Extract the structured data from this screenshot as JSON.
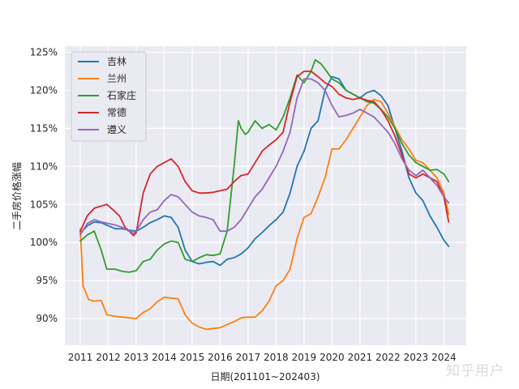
{
  "watermark": "知乎用户",
  "chart_data": {
    "type": "line",
    "title": "",
    "xlabel": "日期(201101~202403)",
    "ylabel": "二手房价格涨幅",
    "x_ticks": [
      "2011",
      "2012",
      "2013",
      "2014",
      "2015",
      "2016",
      "2017",
      "2018",
      "2019",
      "2020",
      "2021",
      "2022",
      "2023",
      "2024"
    ],
    "y_ticks": [
      "90%",
      "95%",
      "100%",
      "105%",
      "110%",
      "115%",
      "120%",
      "125%"
    ],
    "xlim": [
      2010.45,
      2024.8
    ],
    "ylim": [
      86.5,
      125.8
    ],
    "legend_position": "top-left",
    "grid": true,
    "series": [
      {
        "name": "吉林",
        "color": "#1f77b4",
        "points": [
          [
            2011.0,
            101.2
          ],
          [
            2011.25,
            102.2
          ],
          [
            2011.5,
            102.7
          ],
          [
            2011.75,
            102.6
          ],
          [
            2012.0,
            102.2
          ],
          [
            2012.25,
            101.8
          ],
          [
            2012.5,
            101.8
          ],
          [
            2012.75,
            101.6
          ],
          [
            2013.0,
            101.5
          ],
          [
            2013.25,
            102.0
          ],
          [
            2013.5,
            102.6
          ],
          [
            2013.75,
            103.0
          ],
          [
            2014.0,
            103.5
          ],
          [
            2014.25,
            103.3
          ],
          [
            2014.5,
            102.0
          ],
          [
            2014.75,
            99.0
          ],
          [
            2015.0,
            97.5
          ],
          [
            2015.25,
            97.2
          ],
          [
            2015.5,
            97.4
          ],
          [
            2015.75,
            97.5
          ],
          [
            2016.0,
            97.0
          ],
          [
            2016.25,
            97.8
          ],
          [
            2016.5,
            98.0
          ],
          [
            2016.75,
            98.5
          ],
          [
            2017.0,
            99.3
          ],
          [
            2017.25,
            100.5
          ],
          [
            2017.5,
            101.3
          ],
          [
            2017.75,
            102.2
          ],
          [
            2018.0,
            103.0
          ],
          [
            2018.25,
            104.0
          ],
          [
            2018.5,
            106.5
          ],
          [
            2018.75,
            110.0
          ],
          [
            2019.0,
            112.0
          ],
          [
            2019.25,
            115.0
          ],
          [
            2019.5,
            116.0
          ],
          [
            2019.75,
            120.0
          ],
          [
            2020.0,
            121.8
          ],
          [
            2020.25,
            121.5
          ],
          [
            2020.5,
            120.0
          ],
          [
            2020.75,
            119.5
          ],
          [
            2021.0,
            119.0
          ],
          [
            2021.25,
            119.7
          ],
          [
            2021.5,
            120.0
          ],
          [
            2021.75,
            119.3
          ],
          [
            2022.0,
            118.0
          ],
          [
            2022.25,
            115.0
          ],
          [
            2022.5,
            112.0
          ],
          [
            2022.75,
            108.5
          ],
          [
            2023.0,
            106.5
          ],
          [
            2023.25,
            105.5
          ],
          [
            2023.5,
            103.5
          ],
          [
            2023.75,
            102.0
          ],
          [
            2024.0,
            100.3
          ],
          [
            2024.17,
            99.5
          ]
        ]
      },
      {
        "name": "兰州",
        "color": "#ff7f0e",
        "points": [
          [
            2011.0,
            101.8
          ],
          [
            2011.1,
            94.3
          ],
          [
            2011.3,
            92.5
          ],
          [
            2011.5,
            92.3
          ],
          [
            2011.75,
            92.4
          ],
          [
            2011.95,
            90.5
          ],
          [
            2012.25,
            90.3
          ],
          [
            2012.5,
            90.2
          ],
          [
            2012.75,
            90.1
          ],
          [
            2013.0,
            90.0
          ],
          [
            2013.25,
            90.8
          ],
          [
            2013.5,
            91.3
          ],
          [
            2013.75,
            92.2
          ],
          [
            2014.0,
            92.8
          ],
          [
            2014.25,
            92.7
          ],
          [
            2014.5,
            92.6
          ],
          [
            2014.75,
            90.5
          ],
          [
            2015.0,
            89.4
          ],
          [
            2015.25,
            88.9
          ],
          [
            2015.5,
            88.6
          ],
          [
            2015.75,
            88.7
          ],
          [
            2016.0,
            88.8
          ],
          [
            2016.25,
            89.2
          ],
          [
            2016.5,
            89.6
          ],
          [
            2016.75,
            90.1
          ],
          [
            2017.0,
            90.2
          ],
          [
            2017.25,
            90.2
          ],
          [
            2017.5,
            91.0
          ],
          [
            2017.75,
            92.3
          ],
          [
            2018.0,
            94.3
          ],
          [
            2018.25,
            95.0
          ],
          [
            2018.5,
            96.5
          ],
          [
            2018.75,
            100.5
          ],
          [
            2019.0,
            103.3
          ],
          [
            2019.25,
            103.8
          ],
          [
            2019.5,
            106.0
          ],
          [
            2019.75,
            108.5
          ],
          [
            2020.0,
            112.3
          ],
          [
            2020.25,
            112.3
          ],
          [
            2020.5,
            113.5
          ],
          [
            2020.75,
            115.0
          ],
          [
            2021.0,
            116.5
          ],
          [
            2021.25,
            118.0
          ],
          [
            2021.5,
            118.8
          ],
          [
            2021.75,
            118.5
          ],
          [
            2022.0,
            117.0
          ],
          [
            2022.25,
            115.2
          ],
          [
            2022.5,
            113.5
          ],
          [
            2022.75,
            112.3
          ],
          [
            2023.0,
            110.8
          ],
          [
            2023.25,
            110.5
          ],
          [
            2023.5,
            109.5
          ],
          [
            2023.75,
            108.5
          ],
          [
            2024.0,
            106.5
          ],
          [
            2024.17,
            103.7
          ]
        ]
      },
      {
        "name": "石家庄",
        "color": "#2ca02c",
        "points": [
          [
            2011.0,
            100.2
          ],
          [
            2011.25,
            101.0
          ],
          [
            2011.5,
            101.5
          ],
          [
            2011.75,
            99.0
          ],
          [
            2011.95,
            96.5
          ],
          [
            2012.25,
            96.5
          ],
          [
            2012.5,
            96.2
          ],
          [
            2012.75,
            96.1
          ],
          [
            2013.0,
            96.3
          ],
          [
            2013.25,
            97.5
          ],
          [
            2013.5,
            97.8
          ],
          [
            2013.75,
            99.0
          ],
          [
            2014.0,
            99.8
          ],
          [
            2014.25,
            100.2
          ],
          [
            2014.5,
            100.0
          ],
          [
            2014.75,
            97.8
          ],
          [
            2015.0,
            97.5
          ],
          [
            2015.25,
            98.0
          ],
          [
            2015.5,
            98.4
          ],
          [
            2015.75,
            98.3
          ],
          [
            2016.0,
            98.5
          ],
          [
            2016.25,
            101.5
          ],
          [
            2016.5,
            110.0
          ],
          [
            2016.65,
            116.0
          ],
          [
            2016.75,
            115.0
          ],
          [
            2016.9,
            114.2
          ],
          [
            2017.0,
            114.5
          ],
          [
            2017.25,
            116.0
          ],
          [
            2017.5,
            115.0
          ],
          [
            2017.75,
            115.5
          ],
          [
            2018.0,
            114.8
          ],
          [
            2018.25,
            116.5
          ],
          [
            2018.5,
            119.0
          ],
          [
            2018.75,
            122.0
          ],
          [
            2019.0,
            121.0
          ],
          [
            2019.25,
            122.5
          ],
          [
            2019.4,
            124.0
          ],
          [
            2019.6,
            123.5
          ],
          [
            2019.75,
            122.8
          ],
          [
            2020.0,
            121.5
          ],
          [
            2020.25,
            121.0
          ],
          [
            2020.5,
            120.0
          ],
          [
            2020.75,
            119.5
          ],
          [
            2021.0,
            119.0
          ],
          [
            2021.25,
            118.5
          ],
          [
            2021.5,
            118.3
          ],
          [
            2021.75,
            117.5
          ],
          [
            2022.0,
            116.5
          ],
          [
            2022.25,
            115.0
          ],
          [
            2022.5,
            113.0
          ],
          [
            2022.75,
            111.5
          ],
          [
            2023.0,
            110.5
          ],
          [
            2023.25,
            110.0
          ],
          [
            2023.5,
            109.5
          ],
          [
            2023.75,
            109.6
          ],
          [
            2024.0,
            109.0
          ],
          [
            2024.17,
            108.0
          ]
        ]
      },
      {
        "name": "常德",
        "color": "#d62728",
        "points": [
          [
            2011.0,
            101.5
          ],
          [
            2011.25,
            103.5
          ],
          [
            2011.5,
            104.5
          ],
          [
            2011.75,
            104.8
          ],
          [
            2011.95,
            105.0
          ],
          [
            2012.2,
            104.2
          ],
          [
            2012.4,
            103.5
          ],
          [
            2012.6,
            102.0
          ],
          [
            2012.75,
            101.5
          ],
          [
            2012.9,
            100.9
          ],
          [
            2013.0,
            101.3
          ],
          [
            2013.25,
            106.5
          ],
          [
            2013.5,
            109.0
          ],
          [
            2013.75,
            110.0
          ],
          [
            2014.0,
            110.5
          ],
          [
            2014.25,
            111.0
          ],
          [
            2014.5,
            110.0
          ],
          [
            2014.75,
            108.0
          ],
          [
            2015.0,
            106.8
          ],
          [
            2015.25,
            106.5
          ],
          [
            2015.5,
            106.5
          ],
          [
            2015.75,
            106.6
          ],
          [
            2016.0,
            106.8
          ],
          [
            2016.25,
            107.0
          ],
          [
            2016.5,
            108.0
          ],
          [
            2016.75,
            108.8
          ],
          [
            2017.0,
            109.0
          ],
          [
            2017.25,
            110.5
          ],
          [
            2017.5,
            112.0
          ],
          [
            2017.75,
            112.8
          ],
          [
            2018.0,
            113.5
          ],
          [
            2018.25,
            114.5
          ],
          [
            2018.5,
            118.5
          ],
          [
            2018.75,
            121.8
          ],
          [
            2019.0,
            122.5
          ],
          [
            2019.25,
            122.5
          ],
          [
            2019.5,
            121.8
          ],
          [
            2019.75,
            121.0
          ],
          [
            2020.0,
            120.5
          ],
          [
            2020.25,
            119.5
          ],
          [
            2020.5,
            119.0
          ],
          [
            2020.75,
            118.8
          ],
          [
            2021.0,
            119.0
          ],
          [
            2021.25,
            118.7
          ],
          [
            2021.5,
            118.5
          ],
          [
            2021.75,
            117.5
          ],
          [
            2022.0,
            116.0
          ],
          [
            2022.25,
            114.0
          ],
          [
            2022.5,
            111.5
          ],
          [
            2022.75,
            109.0
          ],
          [
            2023.0,
            108.5
          ],
          [
            2023.25,
            109.0
          ],
          [
            2023.5,
            108.5
          ],
          [
            2023.75,
            108.0
          ],
          [
            2024.0,
            106.0
          ],
          [
            2024.17,
            102.7
          ]
        ]
      },
      {
        "name": "遵义",
        "color": "#9467bd",
        "points": [
          [
            2011.0,
            101.0
          ],
          [
            2011.25,
            102.5
          ],
          [
            2011.5,
            103.0
          ],
          [
            2011.75,
            102.7
          ],
          [
            2012.0,
            102.5
          ],
          [
            2012.25,
            102.3
          ],
          [
            2012.5,
            102.0
          ],
          [
            2012.75,
            101.5
          ],
          [
            2012.9,
            101.2
          ],
          [
            2013.0,
            101.5
          ],
          [
            2013.25,
            103.0
          ],
          [
            2013.5,
            104.0
          ],
          [
            2013.75,
            104.3
          ],
          [
            2014.0,
            105.5
          ],
          [
            2014.25,
            106.3
          ],
          [
            2014.5,
            106.0
          ],
          [
            2014.75,
            105.0
          ],
          [
            2015.0,
            104.0
          ],
          [
            2015.25,
            103.5
          ],
          [
            2015.5,
            103.3
          ],
          [
            2015.75,
            103.0
          ],
          [
            2016.0,
            101.5
          ],
          [
            2016.25,
            101.5
          ],
          [
            2016.5,
            102.0
          ],
          [
            2016.75,
            103.0
          ],
          [
            2017.0,
            104.5
          ],
          [
            2017.25,
            106.0
          ],
          [
            2017.5,
            107.0
          ],
          [
            2017.75,
            108.5
          ],
          [
            2018.0,
            110.0
          ],
          [
            2018.25,
            112.0
          ],
          [
            2018.5,
            114.5
          ],
          [
            2018.75,
            119.0
          ],
          [
            2019.0,
            121.5
          ],
          [
            2019.25,
            121.5
          ],
          [
            2019.5,
            121.0
          ],
          [
            2019.75,
            120.0
          ],
          [
            2020.0,
            118.0
          ],
          [
            2020.25,
            116.5
          ],
          [
            2020.5,
            116.7
          ],
          [
            2020.75,
            117.0
          ],
          [
            2021.0,
            117.5
          ],
          [
            2021.25,
            117.0
          ],
          [
            2021.5,
            116.5
          ],
          [
            2021.75,
            115.5
          ],
          [
            2022.0,
            114.5
          ],
          [
            2022.25,
            113.0
          ],
          [
            2022.5,
            111.0
          ],
          [
            2022.75,
            109.5
          ],
          [
            2023.0,
            108.8
          ],
          [
            2023.25,
            109.5
          ],
          [
            2023.5,
            108.5
          ],
          [
            2023.75,
            107.5
          ],
          [
            2024.0,
            106.0
          ],
          [
            2024.17,
            105.2
          ]
        ]
      }
    ]
  }
}
